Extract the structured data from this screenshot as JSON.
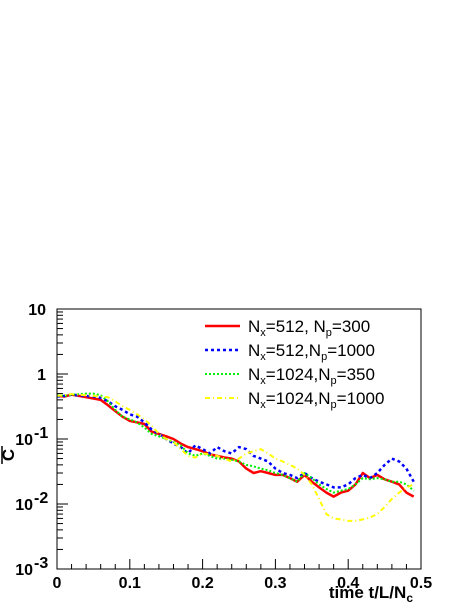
{
  "chart_data": {
    "type": "line",
    "xlabel_main": "time t/L/N",
    "xlabel_sub": "c",
    "ylabel": "C",
    "xlim": [
      0,
      0.5
    ],
    "ylim": [
      0.001,
      10
    ],
    "yscale": "log",
    "x_ticks": [
      {
        "value": 0,
        "label": "0"
      },
      {
        "value": 0.1,
        "label": "0.1"
      },
      {
        "value": 0.2,
        "label": "0.2"
      },
      {
        "value": 0.3,
        "label": "0.3"
      },
      {
        "value": 0.4,
        "label": "0.4"
      },
      {
        "value": 0.5,
        "label": "0.5"
      }
    ],
    "y_ticks": [
      {
        "value": 10,
        "label": "10"
      },
      {
        "value": 1,
        "label": "1"
      },
      {
        "value": 0.1,
        "label": "10",
        "exp": "-1"
      },
      {
        "value": 0.01,
        "label": "10",
        "exp": "-2"
      },
      {
        "value": 0.001,
        "label": "10",
        "exp": "-3"
      }
    ],
    "legend_position": "top-right",
    "series": [
      {
        "legend": [
          {
            "t": "N"
          },
          {
            "t": "x",
            "sub": true
          },
          {
            "t": "=512, N"
          },
          {
            "t": "p",
            "sub": true
          },
          {
            "t": "=300"
          }
        ],
        "color": "#ff0000",
        "dash": "",
        "width": 2.5,
        "x": [
          0,
          0.01,
          0.02,
          0.03,
          0.04,
          0.05,
          0.06,
          0.07,
          0.08,
          0.09,
          0.1,
          0.11,
          0.12,
          0.13,
          0.14,
          0.15,
          0.16,
          0.17,
          0.18,
          0.19,
          0.2,
          0.21,
          0.22,
          0.23,
          0.24,
          0.25,
          0.26,
          0.27,
          0.28,
          0.29,
          0.3,
          0.31,
          0.32,
          0.33,
          0.34,
          0.35,
          0.36,
          0.37,
          0.38,
          0.39,
          0.4,
          0.41,
          0.42,
          0.43,
          0.44,
          0.45,
          0.46,
          0.47,
          0.48,
          0.49
        ],
        "y": [
          0.46,
          0.45,
          0.48,
          0.46,
          0.44,
          0.42,
          0.4,
          0.33,
          0.27,
          0.22,
          0.19,
          0.18,
          0.17,
          0.13,
          0.12,
          0.11,
          0.1,
          0.085,
          0.075,
          0.07,
          0.065,
          0.058,
          0.055,
          0.052,
          0.05,
          0.045,
          0.035,
          0.03,
          0.032,
          0.03,
          0.028,
          0.028,
          0.025,
          0.022,
          0.028,
          0.022,
          0.018,
          0.015,
          0.013,
          0.015,
          0.016,
          0.02,
          0.03,
          0.025,
          0.028,
          0.024,
          0.022,
          0.02,
          0.015,
          0.013
        ]
      },
      {
        "legend": [
          {
            "t": "N"
          },
          {
            "t": "x",
            "sub": true
          },
          {
            "t": "=512,N"
          },
          {
            "t": "p",
            "sub": true
          },
          {
            "t": "=1000"
          }
        ],
        "color": "#0000ff",
        "dash": "3,3",
        "width": 2.5,
        "x": [
          0,
          0.01,
          0.02,
          0.03,
          0.04,
          0.05,
          0.06,
          0.07,
          0.08,
          0.09,
          0.1,
          0.11,
          0.12,
          0.13,
          0.14,
          0.15,
          0.16,
          0.17,
          0.18,
          0.19,
          0.2,
          0.21,
          0.22,
          0.23,
          0.24,
          0.25,
          0.26,
          0.27,
          0.28,
          0.29,
          0.3,
          0.31,
          0.32,
          0.33,
          0.34,
          0.35,
          0.36,
          0.37,
          0.38,
          0.39,
          0.4,
          0.41,
          0.42,
          0.43,
          0.44,
          0.45,
          0.46,
          0.47,
          0.48,
          0.49
        ],
        "y": [
          0.45,
          0.46,
          0.48,
          0.47,
          0.46,
          0.45,
          0.43,
          0.38,
          0.32,
          0.28,
          0.24,
          0.22,
          0.18,
          0.14,
          0.12,
          0.1,
          0.085,
          0.075,
          0.06,
          0.08,
          0.07,
          0.06,
          0.075,
          0.065,
          0.06,
          0.075,
          0.07,
          0.055,
          0.05,
          0.045,
          0.035,
          0.03,
          0.028,
          0.025,
          0.03,
          0.025,
          0.022,
          0.02,
          0.018,
          0.018,
          0.02,
          0.025,
          0.028,
          0.025,
          0.03,
          0.04,
          0.05,
          0.045,
          0.035,
          0.022
        ]
      },
      {
        "legend": [
          {
            "t": "N"
          },
          {
            "t": "x",
            "sub": true
          },
          {
            "t": "=1024,N"
          },
          {
            "t": "p",
            "sub": true
          },
          {
            "t": "=350"
          }
        ],
        "color": "#00ee00",
        "dash": "2,2",
        "width": 2,
        "x": [
          0,
          0.01,
          0.02,
          0.03,
          0.04,
          0.05,
          0.06,
          0.07,
          0.08,
          0.09,
          0.1,
          0.11,
          0.12,
          0.13,
          0.14,
          0.15,
          0.16,
          0.17,
          0.18,
          0.19,
          0.2,
          0.21,
          0.22,
          0.23,
          0.24,
          0.25,
          0.26,
          0.27,
          0.28,
          0.29,
          0.3,
          0.31,
          0.32,
          0.33,
          0.34,
          0.35,
          0.36,
          0.37,
          0.38,
          0.39,
          0.4,
          0.41,
          0.42,
          0.43,
          0.44,
          0.45,
          0.46,
          0.47,
          0.48,
          0.49
        ],
        "y": [
          0.47,
          0.46,
          0.48,
          0.49,
          0.5,
          0.5,
          0.47,
          0.38,
          0.28,
          0.22,
          0.2,
          0.18,
          0.15,
          0.12,
          0.11,
          0.1,
          0.09,
          0.08,
          0.06,
          0.055,
          0.06,
          0.055,
          0.05,
          0.05,
          0.048,
          0.045,
          0.04,
          0.038,
          0.035,
          0.033,
          0.03,
          0.028,
          0.025,
          0.022,
          0.03,
          0.025,
          0.02,
          0.017,
          0.015,
          0.016,
          0.017,
          0.02,
          0.025,
          0.024,
          0.025,
          0.024,
          0.022,
          0.022,
          0.02,
          0.016
        ]
      },
      {
        "legend": [
          {
            "t": "N"
          },
          {
            "t": "x",
            "sub": true
          },
          {
            "t": "=1024,N"
          },
          {
            "t": "p",
            "sub": true
          },
          {
            "t": "=1000"
          }
        ],
        "color": "#ffff00",
        "dash": "5,3,1,3",
        "width": 2,
        "x": [
          0,
          0.01,
          0.02,
          0.03,
          0.04,
          0.05,
          0.06,
          0.07,
          0.08,
          0.09,
          0.1,
          0.11,
          0.12,
          0.13,
          0.14,
          0.15,
          0.16,
          0.17,
          0.18,
          0.19,
          0.2,
          0.21,
          0.22,
          0.23,
          0.24,
          0.25,
          0.26,
          0.27,
          0.28,
          0.29,
          0.3,
          0.31,
          0.32,
          0.33,
          0.34,
          0.35,
          0.36,
          0.37,
          0.38,
          0.39,
          0.4,
          0.41,
          0.42,
          0.43,
          0.44,
          0.45,
          0.46,
          0.47,
          0.48,
          0.49
        ],
        "y": [
          0.46,
          0.47,
          0.49,
          0.48,
          0.47,
          0.46,
          0.45,
          0.44,
          0.38,
          0.32,
          0.28,
          0.24,
          0.2,
          0.16,
          0.12,
          0.1,
          0.09,
          0.07,
          0.055,
          0.052,
          0.06,
          0.058,
          0.055,
          0.05,
          0.045,
          0.05,
          0.06,
          0.065,
          0.07,
          0.06,
          0.05,
          0.045,
          0.04,
          0.035,
          0.028,
          0.02,
          0.012,
          0.007,
          0.006,
          0.0058,
          0.0055,
          0.0055,
          0.0058,
          0.0062,
          0.007,
          0.009,
          0.012,
          0.015,
          0.018,
          0.02
        ]
      }
    ]
  }
}
